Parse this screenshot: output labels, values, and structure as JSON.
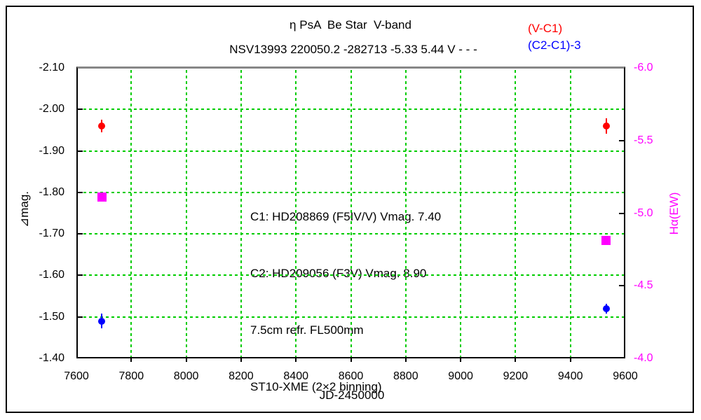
{
  "chart_data": {
    "type": "scatter",
    "title": "η PsA  Be Star  V-band",
    "subtitle": "NSV13993 220050.2 -282713 -5.33 5.44 V - - -",
    "x_label": "JD-2450000",
    "y_left_label": "⊿mag.",
    "y_right_label": "Hα(EW)",
    "x_range": [
      7600,
      9600
    ],
    "y_left_range": [
      -2.1,
      -1.4
    ],
    "y_right_range": [
      -6.0,
      -4.0
    ],
    "y_axes_inverted": true,
    "grid": true,
    "legend_position": "top-right",
    "x_ticks": [
      "7600",
      "7800",
      "8000",
      "8200",
      "8400",
      "8600",
      "8800",
      "9000",
      "9200",
      "9400",
      "9600"
    ],
    "y_left_ticks": [
      "-2.10",
      "-2.00",
      "-1.90",
      "-1.80",
      "-1.70",
      "-1.60",
      "-1.50",
      "-1.40"
    ],
    "y_right_ticks": [
      "-6.0",
      "-5.5",
      "-5.0",
      "-4.5",
      "-4.0"
    ],
    "series": [
      {
        "name": "(V-C1)",
        "color": "#ff0000",
        "axis": "left",
        "marker": "circle",
        "in_legend": true,
        "points": [
          {
            "x": 7692,
            "y": -1.96,
            "err": 0.015
          },
          {
            "x": 9531,
            "y": -1.96,
            "err": 0.018
          }
        ]
      },
      {
        "name": "(C2-C1)-3",
        "color": "#0000ff",
        "axis": "left",
        "marker": "circle",
        "in_legend": true,
        "points": [
          {
            "x": 7692,
            "y": -1.49,
            "err": 0.018
          },
          {
            "x": 9531,
            "y": -1.52,
            "err": 0.012
          }
        ]
      },
      {
        "name": "Hα(EW)",
        "color": "#ff00ff",
        "axis": "right",
        "marker": "square",
        "in_legend": false,
        "points": [
          {
            "x": 7692,
            "y": -5.11,
            "err": 0
          },
          {
            "x": 9531,
            "y": -4.81,
            "err": 0
          }
        ]
      }
    ],
    "annotation": [
      "C1: HD208869 (F5IV/V) Vmag. 7.40",
      "C2: HD209056 (F3V) Vmag. 8.90",
      "7.5cm refr. FL500mm",
      "ST10-XME (2×2 binning)"
    ],
    "colors": {
      "grid": "#00cc00",
      "frame_top": "#878787",
      "axis": "#000000",
      "right_axis_text": "#ff00ff",
      "left_axis_text": "#000000"
    }
  }
}
